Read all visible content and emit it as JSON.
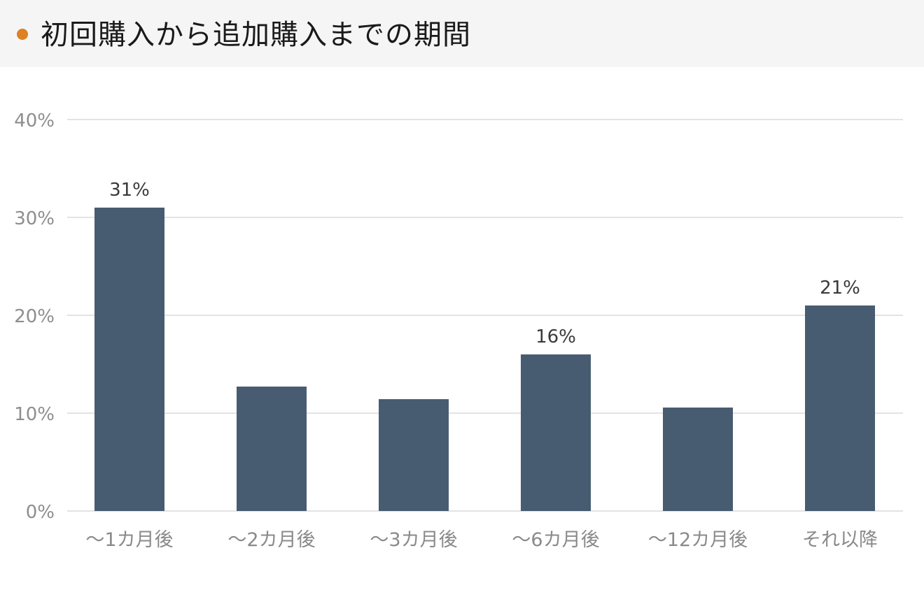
{
  "header": {
    "title": "初回購入から追加購入までの期間",
    "bullet_color": "#dd8122"
  },
  "colors": {
    "bar": "#475c71",
    "grid": "#e3e3e3",
    "tick_text": "#8e8e8e",
    "value_label": "#3a3a3a"
  },
  "chart_data": {
    "type": "bar",
    "title": "初回購入から追加購入までの期間",
    "xlabel": "",
    "ylabel": "",
    "ylim": [
      0,
      40
    ],
    "yticks": [
      "0%",
      "10%",
      "20%",
      "30%",
      "40%"
    ],
    "grid": true,
    "legend": null,
    "categories": [
      "〜1カ月後",
      "〜2カ月後",
      "〜3カ月後",
      "〜6カ月後",
      "〜12カ月後",
      "それ以降"
    ],
    "values": [
      31,
      12.7,
      11.4,
      16,
      10.6,
      21
    ],
    "data_labels": [
      "31%",
      "",
      "",
      "16%",
      "",
      "21%"
    ],
    "unit": "%"
  }
}
